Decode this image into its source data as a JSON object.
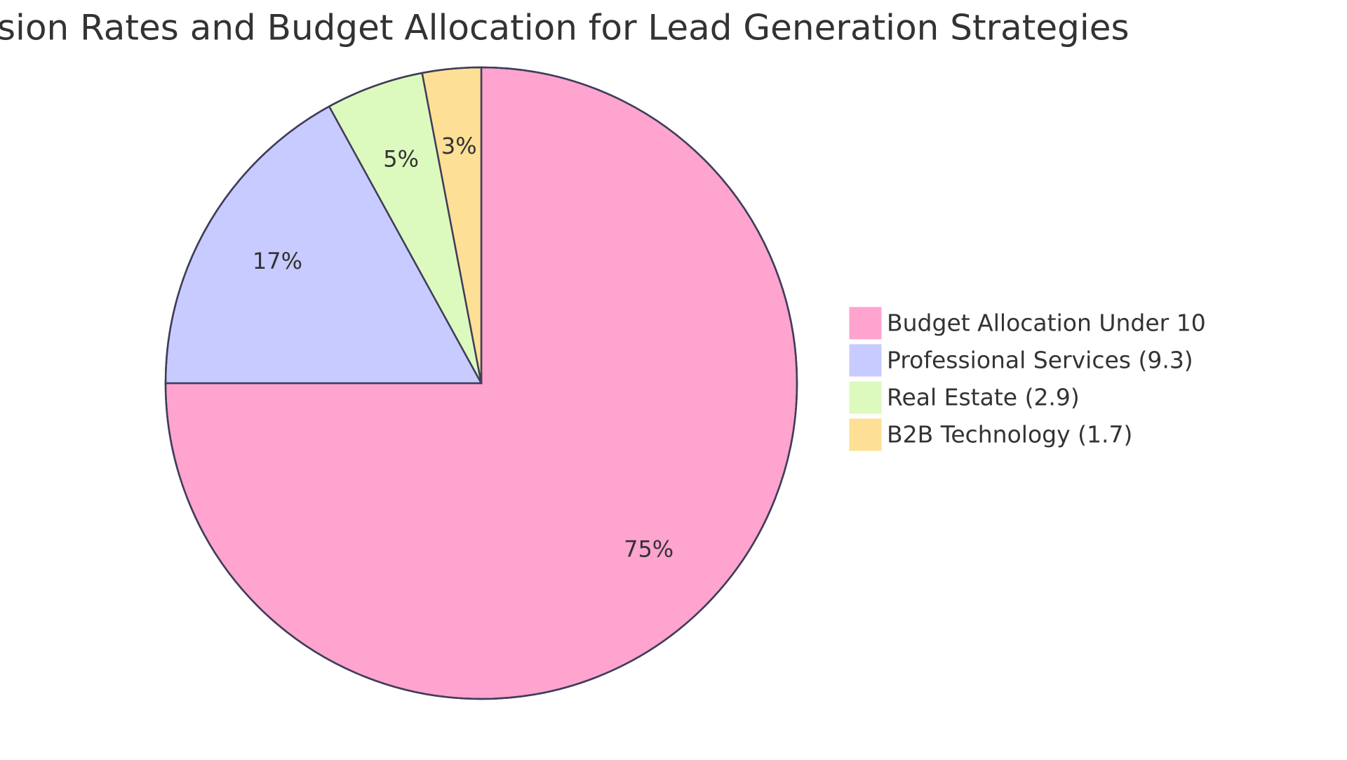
{
  "chart_data": {
    "type": "pie",
    "title": "sion Rates and Budget Allocation for Lead Generation Strategies",
    "categories": [
      "Budget Allocation Under 10",
      "Professional Services (9.3)",
      "Real Estate (2.9)",
      "B2B Technology (1.7)"
    ],
    "values": [
      75,
      17,
      5,
      3
    ],
    "value_labels": [
      "75%",
      "17%",
      "5%",
      "3%"
    ],
    "colors": [
      "#ffa3cf",
      "#c8cbff",
      "#ddfabe",
      "#fde096"
    ],
    "legend": "right"
  }
}
